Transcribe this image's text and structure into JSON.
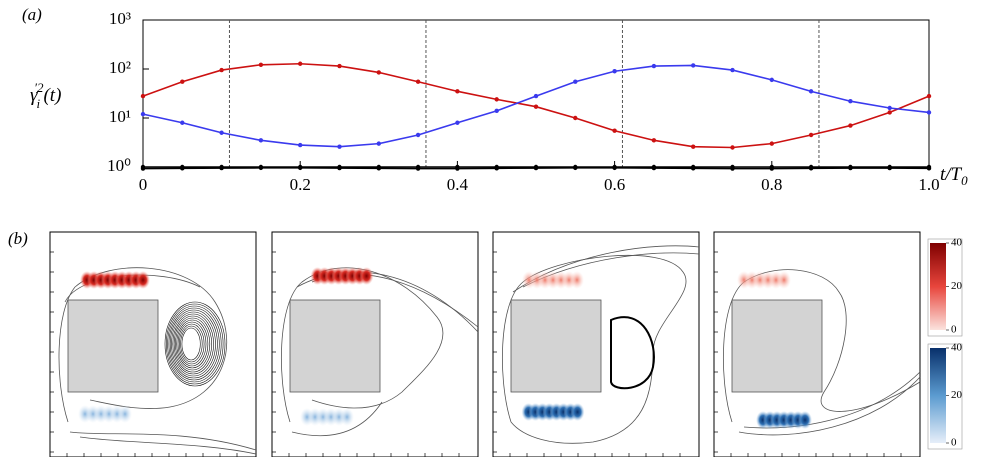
{
  "chart_data": {
    "type": "line",
    "panel_label": "(a)",
    "y_label": {
      "base": "γ",
      "sub": "i",
      "sup": "′2",
      "rest": "(t)"
    },
    "x_label": {
      "base": "t/T",
      "sub": "0"
    },
    "x": [
      0,
      0.05,
      0.1,
      0.15,
      0.2,
      0.25,
      0.3,
      0.35,
      0.4,
      0.45,
      0.5,
      0.55,
      0.6,
      0.65,
      0.7,
      0.75,
      0.8,
      0.85,
      0.9,
      0.95,
      1.0
    ],
    "series": [
      {
        "color": "#cc1111",
        "values": [
          28,
          55,
          95,
          122,
          128,
          115,
          85,
          55,
          35,
          24,
          17,
          10,
          5.5,
          3.5,
          2.6,
          2.5,
          3,
          4.5,
          7,
          13,
          28
        ]
      },
      {
        "color": "#3a3aee",
        "values": [
          12,
          8,
          5,
          3.5,
          2.8,
          2.6,
          3,
          4.5,
          8,
          14,
          28,
          55,
          90,
          115,
          118,
          95,
          60,
          35,
          22,
          16,
          13
        ]
      },
      {
        "color": "#000000",
        "values": [
          1,
          1,
          1,
          1,
          1,
          1,
          1,
          1,
          1,
          1,
          1,
          1,
          1,
          1,
          1,
          1,
          1,
          1,
          1,
          1,
          1
        ]
      },
      {
        "color": "#000000",
        "values": [
          0.93,
          0.94,
          0.95,
          0.96,
          0.96,
          0.95,
          0.94,
          0.93,
          0.93,
          0.94,
          0.95,
          0.96,
          0.96,
          0.95,
          0.94,
          0.93,
          0.93,
          0.94,
          0.95,
          0.95,
          0.94
        ]
      }
    ],
    "xlim": [
      0,
      1.0
    ],
    "xticks": [
      0,
      0.2,
      0.4,
      0.6,
      0.8,
      {
        "value": 1.0,
        "label": "1.0"
      }
    ],
    "ylim": [
      1,
      1000
    ],
    "log_y": true,
    "yticks": [
      {
        "value": 1,
        "label": "10⁰"
      },
      {
        "value": 10,
        "label": "10¹"
      },
      {
        "value": 100,
        "label": "10²"
      },
      {
        "value": 1000,
        "label": "10³"
      }
    ],
    "vlines": [
      0.11,
      0.36,
      0.61,
      0.86
    ]
  },
  "panel_b": {
    "label": "(b)",
    "colorbars": [
      {
        "colors": [
          "#fbe3de",
          "#e8453c",
          "#7f0000"
        ],
        "ticks": [
          0,
          20,
          40
        ],
        "lim": [
          0,
          40
        ]
      },
      {
        "colors": [
          "#e6eef9",
          "#5b9bd0",
          "#08306b"
        ],
        "ticks": [
          0,
          20,
          40
        ],
        "lim": [
          0,
          40
        ]
      }
    ]
  }
}
